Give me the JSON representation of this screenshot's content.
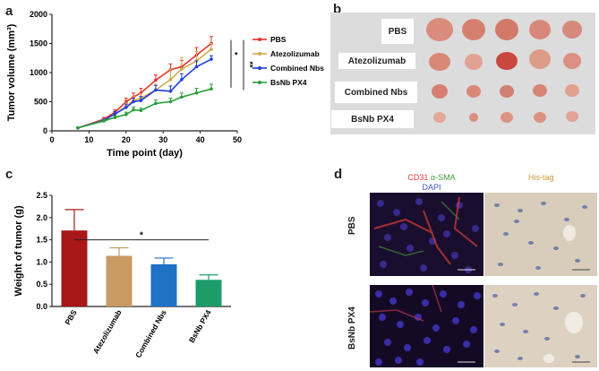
{
  "panels": {
    "a": "a",
    "b": "b",
    "c": "c",
    "d": "d"
  },
  "chart_data": [
    {
      "id": "a",
      "type": "line",
      "title": "",
      "xlabel": "Time point (day)",
      "ylabel": "Tumor volume (mm³)",
      "xlim": [
        0,
        50
      ],
      "ylim": [
        0,
        2000
      ],
      "xticks": [
        0,
        10,
        20,
        30,
        40,
        50
      ],
      "yticks": [
        0,
        500,
        1000,
        1500,
        2000
      ],
      "x": [
        7,
        14,
        17,
        20,
        22,
        24,
        28,
        32,
        35,
        39,
        43
      ],
      "series": [
        {
          "name": "PBS",
          "color": "#e8312a",
          "values": [
            50,
            200,
            320,
            500,
            580,
            650,
            870,
            1050,
            1100,
            1300,
            1500
          ],
          "errors": [
            10,
            30,
            40,
            60,
            70,
            80,
            90,
            100,
            110,
            130,
            120
          ]
        },
        {
          "name": "Atezolizumab",
          "color": "#d4a84b",
          "values": [
            50,
            180,
            290,
            420,
            520,
            560,
            700,
            880,
            1060,
            1200,
            1400
          ],
          "errors": [
            10,
            25,
            40,
            60,
            70,
            80,
            100,
            180,
            200,
            160,
            100
          ]
        },
        {
          "name": "Combined Nbs",
          "color": "#1f3dde",
          "values": [
            50,
            180,
            290,
            400,
            500,
            520,
            700,
            680,
            880,
            1100,
            1230
          ],
          "errors": [
            10,
            25,
            40,
            60,
            60,
            70,
            80,
            90,
            100,
            100,
            60
          ]
        },
        {
          "name": "BsNb PX4",
          "color": "#2a9e3c",
          "values": [
            50,
            170,
            230,
            280,
            360,
            350,
            470,
            500,
            580,
            650,
            720
          ],
          "errors": [
            10,
            25,
            30,
            40,
            50,
            40,
            60,
            60,
            70,
            80,
            80
          ]
        }
      ],
      "significance": [
        "*",
        "**"
      ]
    },
    {
      "id": "c",
      "type": "bar",
      "title": "",
      "xlabel": "",
      "ylabel": "Weight of tumor (g)",
      "ylim": [
        0,
        2.5
      ],
      "yticks": [
        "0.0",
        "0.5",
        "1.0",
        "1.5",
        "2.0",
        "2.5"
      ],
      "categories": [
        "PBS",
        "Atezolizumab",
        "Combined Nbs",
        "BsNb PX4"
      ],
      "values": [
        1.71,
        1.14,
        0.95,
        0.6
      ],
      "errors": [
        0.47,
        0.18,
        0.14,
        0.11
      ],
      "colors": [
        "#a81818",
        "#c99b63",
        "#1f72c6",
        "#1d9c6a"
      ],
      "significance": "*"
    }
  ],
  "panel_b": {
    "labels": [
      "PBS",
      "Atezolizumab",
      "Combined Nbs",
      "BsNb PX4"
    ]
  },
  "panel_d": {
    "stain_cd31": "CD31",
    "stain_sma": "α-SMA",
    "stain_dapi": "DAPI",
    "stain_his": "His-tag",
    "rows": [
      "PBS",
      "BsNb PX4"
    ]
  }
}
